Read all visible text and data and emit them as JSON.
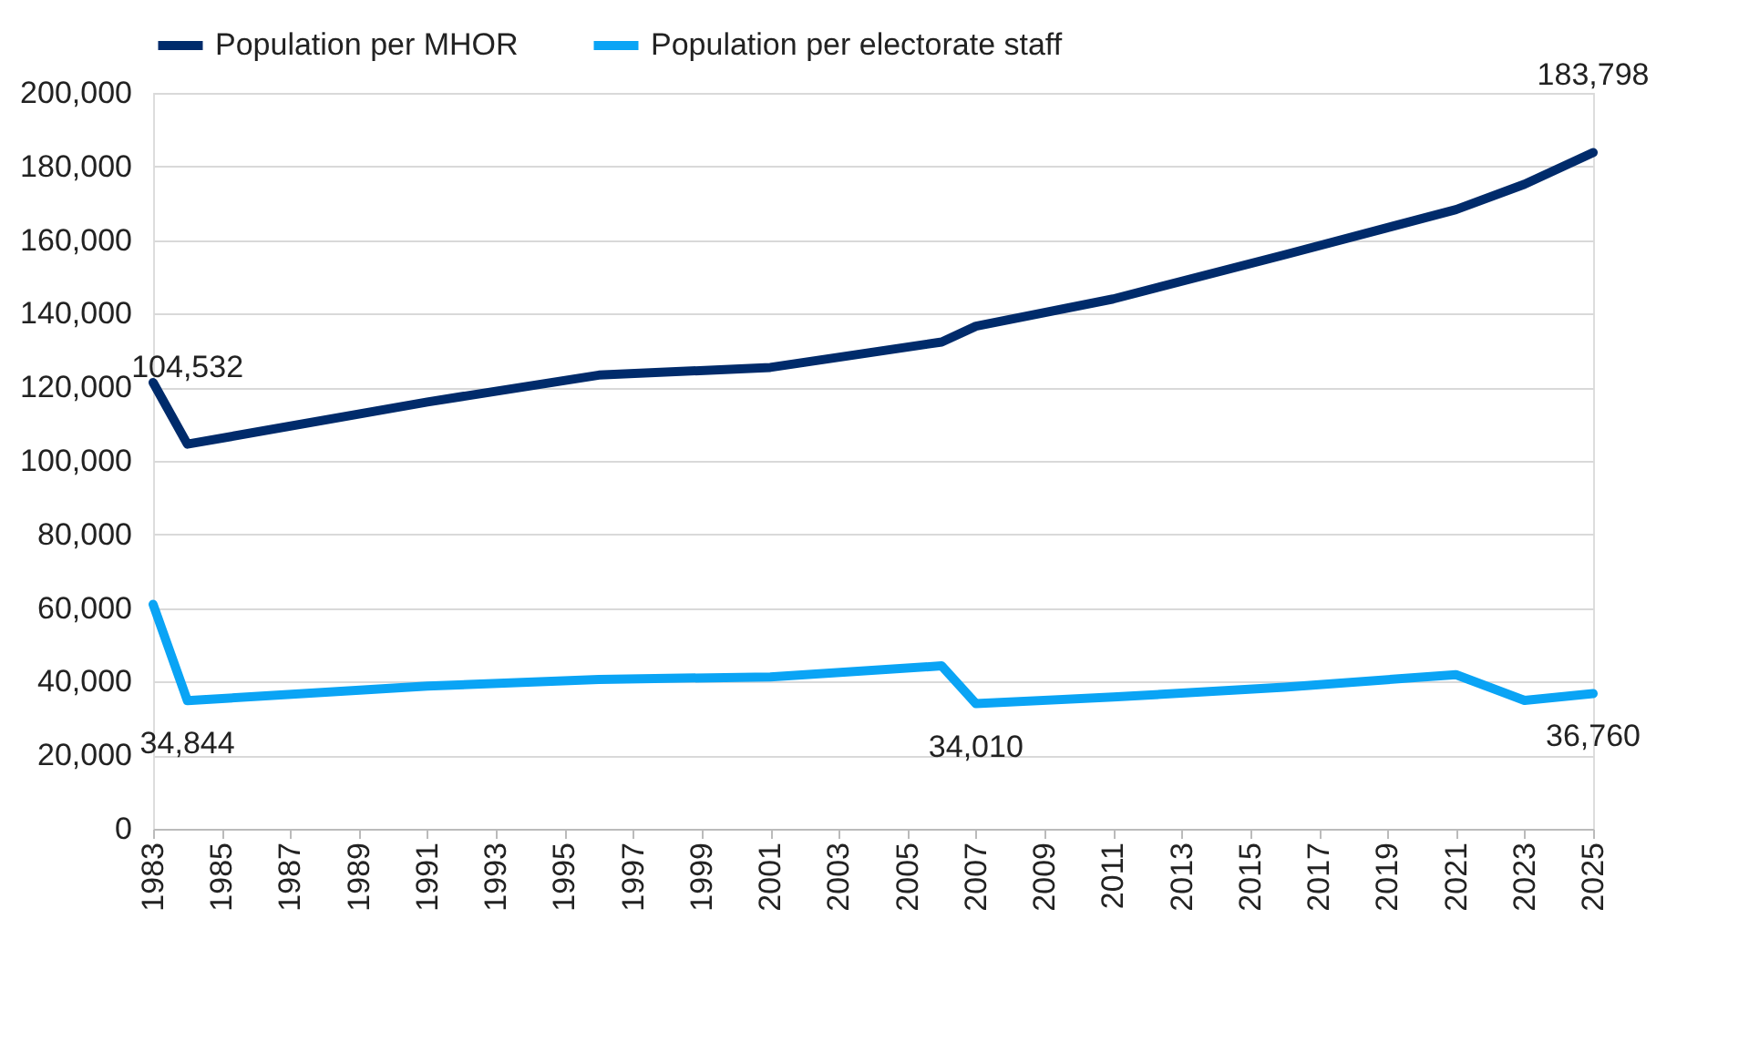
{
  "chart_data": {
    "type": "line",
    "x": [
      1983,
      1984,
      1991,
      1996,
      2001,
      2006,
      2007,
      2011,
      2016,
      2021,
      2023,
      2025
    ],
    "series": [
      {
        "name": "Population per MHOR",
        "color": "#002b6b",
        "values": [
          121300,
          104532,
          116000,
          123300,
          125400,
          132300,
          136600,
          144000,
          156000,
          168300,
          175200,
          183798
        ]
      },
      {
        "name": "Population per electorate staff",
        "color": "#0aa4f5",
        "values": [
          61000,
          34844,
          38800,
          40600,
          41300,
          44300,
          34010,
          35800,
          38500,
          41900,
          34900,
          36760
        ]
      }
    ],
    "xlim": [
      1983,
      2025
    ],
    "xticks": [
      1983,
      1985,
      1987,
      1989,
      1991,
      1993,
      1995,
      1997,
      1999,
      2001,
      2003,
      2005,
      2007,
      2009,
      2011,
      2013,
      2015,
      2017,
      2019,
      2021,
      2023,
      2025
    ],
    "ylim": [
      0,
      200000
    ],
    "yticks": [
      0,
      {
        "value": 20000,
        "label": "20,000"
      },
      {
        "value": 40000,
        "label": "40,000"
      },
      {
        "value": 60000,
        "label": "60,000"
      },
      {
        "value": 80000,
        "label": "80,000"
      },
      {
        "value": 100000,
        "label": "100,000"
      },
      {
        "value": 120000,
        "label": "120,000"
      },
      {
        "value": 140000,
        "label": "140,000"
      },
      {
        "value": 160000,
        "label": "160,000"
      },
      {
        "value": 180000,
        "label": "180,000"
      },
      {
        "value": 200000,
        "label": "200,000"
      }
    ],
    "annotations": [
      {
        "text": "104,532",
        "x": 1984,
        "y": 104532
      },
      {
        "text": "183,798",
        "x": 2025,
        "y": 183798
      },
      {
        "text": "34,844",
        "x": 1984,
        "y": 34844
      },
      {
        "text": "34,010",
        "x": 2007,
        "y": 34010
      },
      {
        "text": "36,760",
        "x": 2025,
        "y": 36760
      }
    ],
    "grid": "y",
    "legend": "top left",
    "marker": "none",
    "line_style": "solid"
  }
}
